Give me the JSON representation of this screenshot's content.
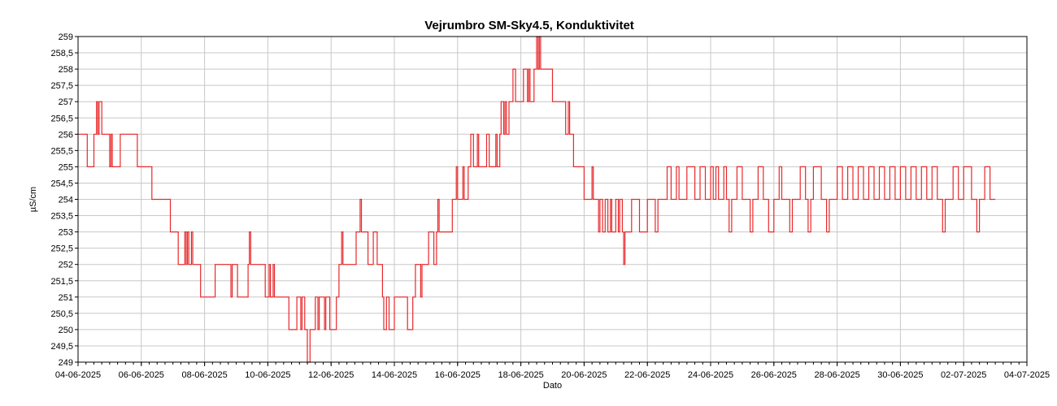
{
  "chart_data": {
    "type": "line",
    "title": "Vejrumbro SM-Sky4.5, Konduktivitet",
    "xlabel": "Dato",
    "ylabel": "µS/cm",
    "ylim": [
      249,
      259
    ],
    "xlim": [
      "2025-06-04",
      "2025-07-04"
    ],
    "grid": true,
    "legend": "none",
    "line_color": "#e8282b",
    "y_ticks": [
      "249",
      "249,5",
      "250",
      "250,5",
      "251",
      "251,5",
      "252",
      "252,5",
      "253",
      "253,5",
      "254",
      "254,5",
      "255",
      "255,5",
      "256",
      "256,5",
      "257",
      "257,5",
      "258",
      "258,5",
      "259"
    ],
    "x_ticks": [
      {
        "date": "2025-06-04",
        "label": "04-06-2025"
      },
      {
        "date": "2025-06-06",
        "label": "06-06-2025"
      },
      {
        "date": "2025-06-08",
        "label": "08-06-2025"
      },
      {
        "date": "2025-06-10",
        "label": "10-06-2025"
      },
      {
        "date": "2025-06-12",
        "label": "12-06-2025"
      },
      {
        "date": "2025-06-14",
        "label": "14-06-2025"
      },
      {
        "date": "2025-06-16",
        "label": "16-06-2025"
      },
      {
        "date": "2025-06-18",
        "label": "18-06-2025"
      },
      {
        "date": "2025-06-20",
        "label": "20-06-2025"
      },
      {
        "date": "2025-06-22",
        "label": "22-06-2025"
      },
      {
        "date": "2025-06-24",
        "label": "24-06-2025"
      },
      {
        "date": "2025-06-26",
        "label": "26-06-2025"
      },
      {
        "date": "2025-06-28",
        "label": "28-06-2025"
      },
      {
        "date": "2025-06-30",
        "label": "30-06-2025"
      },
      {
        "date": "2025-07-02",
        "label": "02-07-2025"
      },
      {
        "date": "2025-07-04",
        "label": "04-07-2025"
      }
    ],
    "series": [
      {
        "points": [
          [
            "2025-06-04 00:00",
            256
          ],
          [
            "2025-06-04 07:00",
            255
          ],
          [
            "2025-06-04 12:00",
            256
          ],
          [
            "2025-06-04 14:00",
            257
          ],
          [
            "2025-06-04 15:00",
            256
          ],
          [
            "2025-06-04 16:00",
            257
          ],
          [
            "2025-06-04 18:00",
            256
          ],
          [
            "2025-06-05 00:00",
            255
          ],
          [
            "2025-06-05 01:00",
            256
          ],
          [
            "2025-06-05 02:00",
            255
          ],
          [
            "2025-06-05 08:00",
            256
          ],
          [
            "2025-06-05 21:00",
            255
          ],
          [
            "2025-06-06 08:00",
            254
          ],
          [
            "2025-06-06 22:00",
            253
          ],
          [
            "2025-06-07 04:00",
            252
          ],
          [
            "2025-06-07 09:00",
            253
          ],
          [
            "2025-06-07 10:00",
            252
          ],
          [
            "2025-06-07 11:00",
            253
          ],
          [
            "2025-06-07 12:00",
            252
          ],
          [
            "2025-06-07 14:00",
            253
          ],
          [
            "2025-06-07 15:00",
            252
          ],
          [
            "2025-06-07 21:00",
            251
          ],
          [
            "2025-06-08 08:00",
            252
          ],
          [
            "2025-06-08 20:00",
            251
          ],
          [
            "2025-06-08 21:00",
            252
          ],
          [
            "2025-06-09 01:00",
            251
          ],
          [
            "2025-06-09 09:00",
            252
          ],
          [
            "2025-06-09 10:00",
            253
          ],
          [
            "2025-06-09 11:00",
            252
          ],
          [
            "2025-06-09 22:00",
            251
          ],
          [
            "2025-06-10 01:00",
            252
          ],
          [
            "2025-06-10 02:00",
            251
          ],
          [
            "2025-06-10 04:00",
            252
          ],
          [
            "2025-06-10 05:00",
            251
          ],
          [
            "2025-06-10 16:00",
            250
          ],
          [
            "2025-06-10 22:00",
            251
          ],
          [
            "2025-06-11 01:00",
            250
          ],
          [
            "2025-06-11 02:00",
            251
          ],
          [
            "2025-06-11 04:00",
            250
          ],
          [
            "2025-06-11 06:00",
            249
          ],
          [
            "2025-06-11 08:00",
            250
          ],
          [
            "2025-06-11 12:00",
            251
          ],
          [
            "2025-06-11 14:00",
            250
          ],
          [
            "2025-06-11 15:00",
            251
          ],
          [
            "2025-06-11 19:00",
            250
          ],
          [
            "2025-06-11 20:00",
            251
          ],
          [
            "2025-06-11 23:00",
            250
          ],
          [
            "2025-06-12 04:00",
            251
          ],
          [
            "2025-06-12 06:00",
            252
          ],
          [
            "2025-06-12 08:00",
            253
          ],
          [
            "2025-06-12 09:00",
            252
          ],
          [
            "2025-06-12 19:00",
            253
          ],
          [
            "2025-06-12 22:00",
            254
          ],
          [
            "2025-06-12 23:00",
            253
          ],
          [
            "2025-06-13 04:00",
            252
          ],
          [
            "2025-06-13 08:00",
            253
          ],
          [
            "2025-06-13 11:00",
            252
          ],
          [
            "2025-06-13 15:00",
            251
          ],
          [
            "2025-06-13 16:00",
            250
          ],
          [
            "2025-06-13 18:00",
            251
          ],
          [
            "2025-06-13 20:00",
            250
          ],
          [
            "2025-06-14 00:00",
            251
          ],
          [
            "2025-06-14 10:00",
            250
          ],
          [
            "2025-06-14 14:00",
            251
          ],
          [
            "2025-06-14 16:00",
            252
          ],
          [
            "2025-06-14 20:00",
            251
          ],
          [
            "2025-06-14 21:00",
            252
          ],
          [
            "2025-06-15 02:00",
            253
          ],
          [
            "2025-06-15 06:00",
            252
          ],
          [
            "2025-06-15 08:00",
            253
          ],
          [
            "2025-06-15 09:00",
            254
          ],
          [
            "2025-06-15 10:00",
            253
          ],
          [
            "2025-06-15 20:00",
            254
          ],
          [
            "2025-06-15 23:00",
            255
          ],
          [
            "2025-06-16 00:00",
            254
          ],
          [
            "2025-06-16 04:00",
            255
          ],
          [
            "2025-06-16 05:00",
            254
          ],
          [
            "2025-06-16 08:00",
            255
          ],
          [
            "2025-06-16 10:00",
            256
          ],
          [
            "2025-06-16 12:00",
            255
          ],
          [
            "2025-06-16 15:00",
            256
          ],
          [
            "2025-06-16 16:00",
            255
          ],
          [
            "2025-06-16 22:00",
            256
          ],
          [
            "2025-06-17 00:00",
            255
          ],
          [
            "2025-06-17 05:00",
            256
          ],
          [
            "2025-06-17 06:00",
            255
          ],
          [
            "2025-06-17 08:00",
            256
          ],
          [
            "2025-06-17 09:00",
            257
          ],
          [
            "2025-06-17 11:00",
            256
          ],
          [
            "2025-06-17 12:00",
            257
          ],
          [
            "2025-06-17 13:00",
            256
          ],
          [
            "2025-06-17 15:00",
            257
          ],
          [
            "2025-06-17 18:00",
            258
          ],
          [
            "2025-06-17 20:00",
            257
          ],
          [
            "2025-06-18 02:00",
            258
          ],
          [
            "2025-06-18 05:00",
            257
          ],
          [
            "2025-06-18 06:00",
            258
          ],
          [
            "2025-06-18 07:00",
            257
          ],
          [
            "2025-06-18 10:00",
            258
          ],
          [
            "2025-06-18 12:00",
            259
          ],
          [
            "2025-06-18 13:00",
            258
          ],
          [
            "2025-06-18 14:00",
            259
          ],
          [
            "2025-06-18 15:00",
            258
          ],
          [
            "2025-06-19 00:00",
            257
          ],
          [
            "2025-06-19 10:00",
            256
          ],
          [
            "2025-06-19 12:00",
            257
          ],
          [
            "2025-06-19 13:00",
            256
          ],
          [
            "2025-06-19 16:00",
            255
          ],
          [
            "2025-06-20 00:00",
            254
          ],
          [
            "2025-06-20 06:00",
            255
          ],
          [
            "2025-06-20 07:00",
            254
          ],
          [
            "2025-06-20 11:00",
            253
          ],
          [
            "2025-06-20 12:00",
            254
          ],
          [
            "2025-06-20 14:00",
            253
          ],
          [
            "2025-06-20 16:00",
            254
          ],
          [
            "2025-06-20 18:00",
            253
          ],
          [
            "2025-06-20 20:00",
            254
          ],
          [
            "2025-06-20 21:00",
            253
          ],
          [
            "2025-06-21 00:00",
            254
          ],
          [
            "2025-06-21 02:00",
            253
          ],
          [
            "2025-06-21 03:00",
            254
          ],
          [
            "2025-06-21 05:00",
            253
          ],
          [
            "2025-06-21 06:00",
            252
          ],
          [
            "2025-06-21 07:00",
            253
          ],
          [
            "2025-06-21 12:00",
            254
          ],
          [
            "2025-06-21 18:00",
            253
          ],
          [
            "2025-06-22 00:00",
            254
          ],
          [
            "2025-06-22 06:00",
            253
          ],
          [
            "2025-06-22 08:00",
            254
          ],
          [
            "2025-06-22 15:00",
            255
          ],
          [
            "2025-06-22 18:00",
            254
          ],
          [
            "2025-06-22 22:00",
            255
          ],
          [
            "2025-06-23 00:00",
            254
          ],
          [
            "2025-06-23 06:00",
            255
          ],
          [
            "2025-06-23 12:00",
            254
          ],
          [
            "2025-06-23 16:00",
            255
          ],
          [
            "2025-06-23 20:00",
            254
          ],
          [
            "2025-06-24 00:00",
            255
          ],
          [
            "2025-06-24 02:00",
            254
          ],
          [
            "2025-06-24 04:00",
            255
          ],
          [
            "2025-06-24 06:00",
            254
          ],
          [
            "2025-06-24 10:00",
            255
          ],
          [
            "2025-06-24 12:00",
            254
          ],
          [
            "2025-06-24 14:00",
            253
          ],
          [
            "2025-06-24 16:00",
            254
          ],
          [
            "2025-06-24 20:00",
            255
          ],
          [
            "2025-06-25 00:00",
            254
          ],
          [
            "2025-06-25 06:00",
            253
          ],
          [
            "2025-06-25 08:00",
            254
          ],
          [
            "2025-06-25 12:00",
            255
          ],
          [
            "2025-06-25 16:00",
            254
          ],
          [
            "2025-06-25 20:00",
            253
          ],
          [
            "2025-06-26 00:00",
            254
          ],
          [
            "2025-06-26 04:00",
            255
          ],
          [
            "2025-06-26 06:00",
            254
          ],
          [
            "2025-06-26 12:00",
            253
          ],
          [
            "2025-06-26 14:00",
            254
          ],
          [
            "2025-06-26 20:00",
            255
          ],
          [
            "2025-06-27 00:00",
            254
          ],
          [
            "2025-06-27 02:00",
            253
          ],
          [
            "2025-06-27 04:00",
            254
          ],
          [
            "2025-06-27 06:00",
            255
          ],
          [
            "2025-06-27 12:00",
            254
          ],
          [
            "2025-06-27 16:00",
            253
          ],
          [
            "2025-06-27 18:00",
            254
          ],
          [
            "2025-06-28 00:00",
            255
          ],
          [
            "2025-06-28 04:00",
            254
          ],
          [
            "2025-06-28 08:00",
            255
          ],
          [
            "2025-06-28 12:00",
            254
          ],
          [
            "2025-06-28 16:00",
            255
          ],
          [
            "2025-06-28 20:00",
            254
          ],
          [
            "2025-06-29 00:00",
            255
          ],
          [
            "2025-06-29 04:00",
            254
          ],
          [
            "2025-06-29 08:00",
            255
          ],
          [
            "2025-06-29 12:00",
            254
          ],
          [
            "2025-06-29 16:00",
            255
          ],
          [
            "2025-06-29 20:00",
            254
          ],
          [
            "2025-06-30 00:00",
            255
          ],
          [
            "2025-06-30 04:00",
            254
          ],
          [
            "2025-06-30 08:00",
            255
          ],
          [
            "2025-06-30 12:00",
            254
          ],
          [
            "2025-06-30 16:00",
            255
          ],
          [
            "2025-06-30 20:00",
            254
          ],
          [
            "2025-07-01 00:00",
            255
          ],
          [
            "2025-07-01 04:00",
            254
          ],
          [
            "2025-07-01 08:00",
            253
          ],
          [
            "2025-07-01 10:00",
            254
          ],
          [
            "2025-07-01 16:00",
            255
          ],
          [
            "2025-07-01 20:00",
            254
          ],
          [
            "2025-07-02 00:00",
            255
          ],
          [
            "2025-07-02 06:00",
            254
          ],
          [
            "2025-07-02 10:00",
            253
          ],
          [
            "2025-07-02 12:00",
            254
          ],
          [
            "2025-07-02 16:00",
            255
          ],
          [
            "2025-07-02 20:00",
            254
          ],
          [
            "2025-07-03 00:00",
            254
          ]
        ]
      }
    ]
  }
}
